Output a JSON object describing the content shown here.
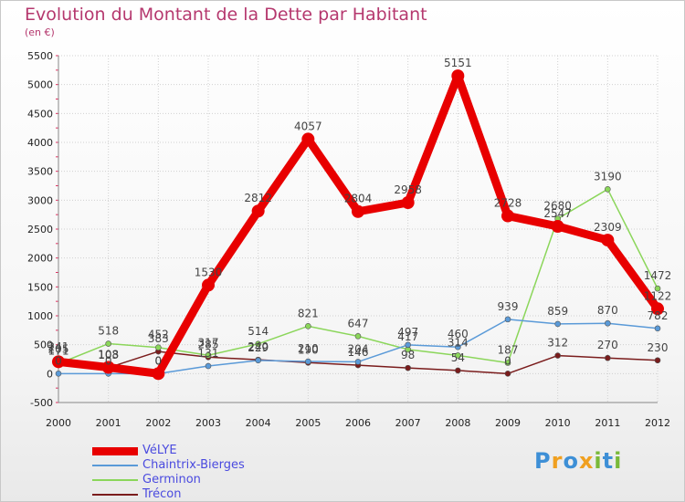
{
  "title": "Evolution du Montant de la Dette par Habitant",
  "subtitle": "(en €)",
  "logo": {
    "text": "Proxiti"
  },
  "colors": {
    "title": "#b5386e",
    "legend_text": "#4a4adf",
    "grid": "#d0d0d0",
    "axis_text": "#222222"
  },
  "chart_data": {
    "type": "line",
    "title": "Evolution du Montant de la Dette par Habitant",
    "subtitle": "(en €)",
    "xlabel": "",
    "ylabel": "",
    "x": [
      "2000",
      "2001",
      "2002",
      "2003",
      "2004",
      "2005",
      "2006",
      "2007",
      "2008",
      "2009",
      "2010",
      "2011",
      "2012"
    ],
    "ylim": [
      -500,
      5500
    ],
    "yticks": [
      -500,
      0,
      500,
      1000,
      1500,
      2000,
      2500,
      3000,
      3500,
      4000,
      4500,
      5000,
      5500
    ],
    "grid": true,
    "legend_position": "bottom-left",
    "series": [
      {
        "name": "VéLYE",
        "color": "#e80000",
        "values": [
          205,
          108,
          0,
          1530,
          2812,
          4057,
          2804,
          2958,
          5151,
          2728,
          2547,
          2309,
          1122
        ],
        "labels": [
          "205",
          "108",
          "0",
          "1530",
          "2812",
          "4057",
          "2804",
          "2958",
          "5151",
          "2728",
          "2547",
          "2309",
          "1122"
        ]
      },
      {
        "name": "Chaintrix-Bierges",
        "color": "#5a9ad8",
        "values": [
          0,
          0,
          0,
          131,
          229,
          210,
          204,
          497,
          460,
          939,
          859,
          870,
          782
        ],
        "labels": [
          "0",
          "0",
          "0",
          "131",
          "229",
          "210",
          "204",
          "497",
          "460",
          "939",
          "859",
          "870",
          "782"
        ]
      },
      {
        "name": "Germinon",
        "color": "#8bd65a",
        "values": [
          171,
          518,
          452,
          317,
          514,
          821,
          647,
          417,
          314,
          187,
          2680,
          3190,
          1472
        ],
        "labels": [
          "171",
          "518",
          "452",
          "317",
          "514",
          "821",
          "647",
          "417",
          "314",
          "187",
          "2680",
          "3190",
          "1472"
        ]
      },
      {
        "name": "Trécon",
        "color": "#7a1c1c",
        "values": [
          241,
          103,
          383,
          285,
          240,
          190,
          146,
          98,
          54,
          0,
          312,
          270,
          230
        ],
        "labels": [
          "241",
          "103",
          "383",
          "285",
          "240",
          "190",
          "146",
          "98",
          "54",
          "0",
          "312",
          "270",
          "230"
        ]
      }
    ]
  }
}
